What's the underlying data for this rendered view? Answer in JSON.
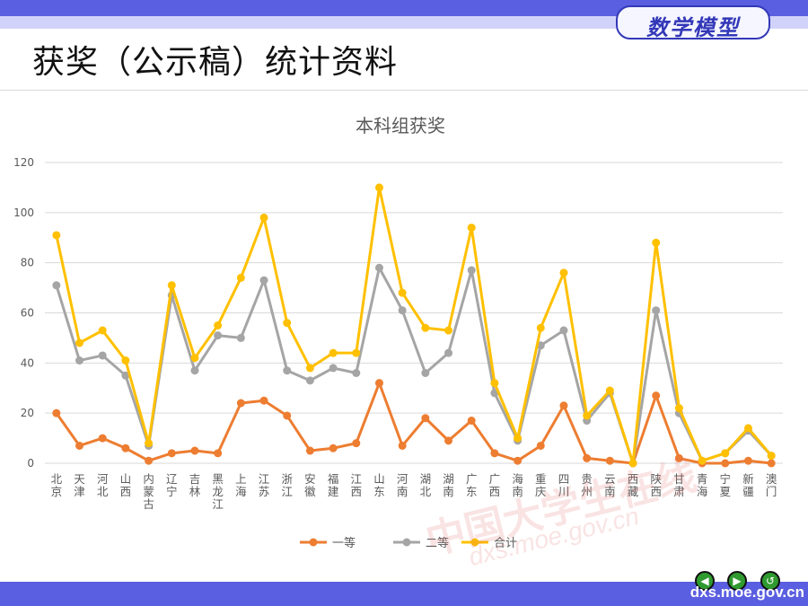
{
  "header": {
    "badge": "数学模型",
    "title": "获奖（公示稿）统计资料"
  },
  "footer": {
    "url": "dxs.moe.gov.cn"
  },
  "watermark": {
    "cn": "中国大学生在线",
    "url": "dxs.moe.gov.cn"
  },
  "colors": {
    "series1": "#ed7d31",
    "series2": "#a5a5a5",
    "series3": "#ffc000",
    "grid": "#d9d9d9",
    "axis_text": "#595959"
  },
  "chart_data": {
    "type": "line",
    "title": "本科组获奖",
    "xlabel": "",
    "ylabel": "",
    "ylim": [
      0,
      120
    ],
    "yticks": [
      0,
      20,
      40,
      60,
      80,
      100,
      120
    ],
    "grid": true,
    "legend": "bottom",
    "categories": [
      "北京",
      "天津",
      "河北",
      "山西",
      "内蒙古",
      "辽宁",
      "吉林",
      "黑龙江",
      "上海",
      "江苏",
      "浙江",
      "安徽",
      "福建",
      "江西",
      "山东",
      "河南",
      "湖北",
      "湖南",
      "广东",
      "广西",
      "海南",
      "重庆",
      "四川",
      "贵州",
      "云南",
      "西藏",
      "陕西",
      "甘肃",
      "青海",
      "宁夏",
      "新疆",
      "澳门"
    ],
    "series": [
      {
        "name": "一等",
        "values": [
          20,
          7,
          10,
          6,
          1,
          4,
          5,
          4,
          24,
          25,
          19,
          5,
          6,
          8,
          32,
          7,
          18,
          9,
          17,
          4,
          1,
          7,
          23,
          2,
          1,
          0,
          27,
          2,
          0,
          0,
          1,
          0
        ]
      },
      {
        "name": "二等",
        "values": [
          71,
          41,
          43,
          35,
          7,
          67,
          37,
          51,
          50,
          73,
          37,
          33,
          38,
          36,
          78,
          61,
          36,
          44,
          77,
          28,
          9,
          47,
          53,
          17,
          28,
          0,
          61,
          20,
          1,
          4,
          13,
          3
        ]
      },
      {
        "name": "合计",
        "values": [
          91,
          48,
          53,
          41,
          8,
          71,
          42,
          55,
          74,
          98,
          56,
          38,
          44,
          44,
          110,
          68,
          54,
          53,
          94,
          32,
          10,
          54,
          76,
          19,
          29,
          0,
          88,
          22,
          1,
          4,
          14,
          3
        ]
      }
    ]
  }
}
